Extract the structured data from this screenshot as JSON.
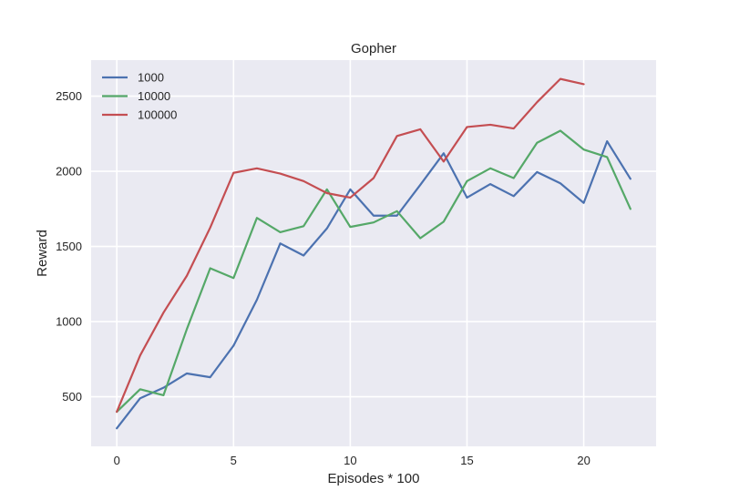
{
  "chart_data": {
    "type": "line",
    "title": "Gopher",
    "xlabel": "Episodes * 100",
    "ylabel": "Reward",
    "xlim": [
      -1.1,
      23.1
    ],
    "ylim": [
      170,
      2740
    ],
    "xticks": [
      0,
      5,
      10,
      15,
      20
    ],
    "yticks": [
      500,
      1000,
      1500,
      2000,
      2500
    ],
    "grid": true,
    "legend_position": "top-left",
    "series": [
      {
        "name": "1000",
        "color": "#4c72b0",
        "x": [
          0,
          1,
          2,
          3,
          4,
          5,
          6,
          7,
          8,
          9,
          10,
          11,
          12,
          13,
          14,
          15,
          16,
          17,
          18,
          19,
          20,
          21,
          22
        ],
        "y": [
          290,
          490,
          560,
          655,
          630,
          840,
          1145,
          1520,
          1440,
          1620,
          1880,
          1705,
          1705,
          1910,
          2120,
          1825,
          1915,
          1835,
          1995,
          1920,
          1790,
          2200,
          1950
        ]
      },
      {
        "name": "10000",
        "color": "#55a868",
        "x": [
          0,
          1,
          2,
          3,
          4,
          5,
          6,
          7,
          8,
          9,
          10,
          11,
          12,
          13,
          14,
          15,
          16,
          17,
          18,
          19,
          20,
          21,
          22
        ],
        "y": [
          400,
          550,
          510,
          950,
          1355,
          1290,
          1690,
          1595,
          1635,
          1880,
          1630,
          1660,
          1735,
          1555,
          1665,
          1935,
          2020,
          1955,
          2190,
          2270,
          2145,
          2095,
          1750
        ]
      },
      {
        "name": "100000",
        "color": "#c44e52",
        "x": [
          0,
          1,
          2,
          3,
          4,
          5,
          6,
          7,
          8,
          9,
          10,
          11,
          12,
          13,
          14,
          15,
          16,
          17,
          18,
          19,
          20
        ],
        "y": [
          400,
          775,
          1060,
          1305,
          1625,
          1990,
          2020,
          1985,
          1935,
          1855,
          1825,
          1955,
          2235,
          2280,
          2065,
          2295,
          2310,
          2285,
          2460,
          2615,
          2580
        ]
      }
    ]
  }
}
